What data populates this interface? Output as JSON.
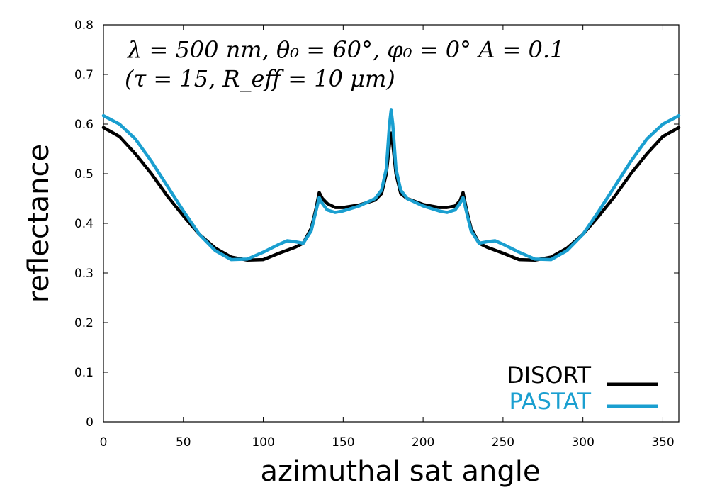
{
  "chart_data": {
    "type": "line",
    "title": "",
    "xlabel": "azimuthal sat angle",
    "ylabel": "reflectance",
    "xlim": [
      0,
      360
    ],
    "ylim": [
      0,
      0.8
    ],
    "xticks": [
      "0",
      "50",
      "100",
      "150",
      "200",
      "250",
      "300",
      "350"
    ],
    "yticks": [
      "0",
      "0.1",
      "0.2",
      "0.3",
      "0.4",
      "0.5",
      "0.6",
      "0.7",
      "0.8"
    ],
    "annotation_line1": "λ = 500 nm, θ₀ = 60°, φ₀ = 0° A = 0.1",
    "annotation_line2": "(τ = 15, R_eff = 10 μm)",
    "legend_position": "bottom-right",
    "grid": false,
    "series": [
      {
        "name": "DISORT",
        "color": "#000000",
        "x": [
          0,
          10,
          20,
          30,
          40,
          50,
          60,
          70,
          80,
          90,
          100,
          110,
          120,
          125,
          130,
          133,
          135,
          137,
          140,
          145,
          150,
          160,
          170,
          174,
          177,
          179,
          180,
          181,
          183,
          186,
          190,
          200,
          210,
          215,
          220,
          223,
          225,
          227,
          230,
          235,
          240,
          250,
          260,
          270,
          280,
          290,
          300,
          310,
          320,
          330,
          340,
          350,
          360
        ],
        "y": [
          0.593,
          0.575,
          0.54,
          0.5,
          0.455,
          0.415,
          0.378,
          0.35,
          0.332,
          0.326,
          0.327,
          0.34,
          0.352,
          0.36,
          0.39,
          0.43,
          0.462,
          0.45,
          0.44,
          0.432,
          0.432,
          0.437,
          0.447,
          0.46,
          0.5,
          0.56,
          0.582,
          0.56,
          0.5,
          0.46,
          0.45,
          0.438,
          0.432,
          0.432,
          0.435,
          0.445,
          0.462,
          0.43,
          0.39,
          0.36,
          0.352,
          0.34,
          0.327,
          0.326,
          0.332,
          0.35,
          0.378,
          0.415,
          0.455,
          0.5,
          0.54,
          0.575,
          0.593
        ]
      },
      {
        "name": "PASTAT",
        "color": "#1a9fd0",
        "x": [
          0,
          10,
          20,
          30,
          40,
          50,
          60,
          70,
          80,
          90,
          100,
          110,
          115,
          120,
          125,
          130,
          133,
          135,
          137,
          140,
          145,
          150,
          160,
          170,
          174,
          177,
          179,
          180,
          181,
          183,
          186,
          190,
          200,
          210,
          215,
          220,
          223,
          225,
          227,
          230,
          235,
          240,
          245,
          250,
          260,
          270,
          280,
          290,
          300,
          310,
          320,
          330,
          340,
          350,
          360
        ],
        "y": [
          0.617,
          0.6,
          0.57,
          0.525,
          0.475,
          0.425,
          0.378,
          0.345,
          0.327,
          0.328,
          0.342,
          0.358,
          0.365,
          0.363,
          0.36,
          0.385,
          0.425,
          0.452,
          0.44,
          0.427,
          0.422,
          0.425,
          0.435,
          0.45,
          0.467,
          0.51,
          0.6,
          0.628,
          0.6,
          0.51,
          0.467,
          0.45,
          0.435,
          0.425,
          0.422,
          0.427,
          0.44,
          0.452,
          0.425,
          0.385,
          0.36,
          0.363,
          0.365,
          0.358,
          0.342,
          0.328,
          0.327,
          0.345,
          0.378,
          0.425,
          0.475,
          0.525,
          0.57,
          0.6,
          0.617
        ]
      }
    ]
  }
}
